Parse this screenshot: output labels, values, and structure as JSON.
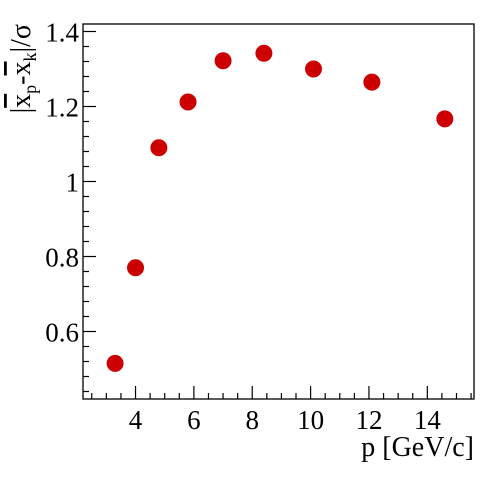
{
  "chart_data": {
    "type": "scatter",
    "title": "",
    "xlabel": "p [GeV/c]",
    "ylabel": {
      "lead": "|",
      "xp_base": "x",
      "xp_sub": "p",
      "sep": "-",
      "xk_base": "x",
      "xk_sub": "k",
      "tail": "|/σ"
    },
    "xlim": [
      2.2,
      15.6
    ],
    "ylim": [
      0.42,
      1.42
    ],
    "x_ticks": [
      4,
      6,
      8,
      10,
      12,
      14
    ],
    "x_tick_labels": [
      "4",
      "6",
      "8",
      "10",
      "12",
      "14"
    ],
    "y_ticks": [
      0.6,
      0.8,
      1.0,
      1.2,
      1.4
    ],
    "y_tick_labels": [
      "0.6",
      "0.8",
      "1",
      "1.2",
      "1.4"
    ],
    "grid": false,
    "marker_color": "#cc0000",
    "series": [
      {
        "x": [
          3.3,
          4.0,
          4.8,
          5.8,
          7.0,
          8.4,
          10.1,
          12.1,
          14.6
        ],
        "y": [
          0.515,
          0.77,
          1.09,
          1.212,
          1.322,
          1.342,
          1.3,
          1.265,
          1.167
        ]
      }
    ]
  }
}
